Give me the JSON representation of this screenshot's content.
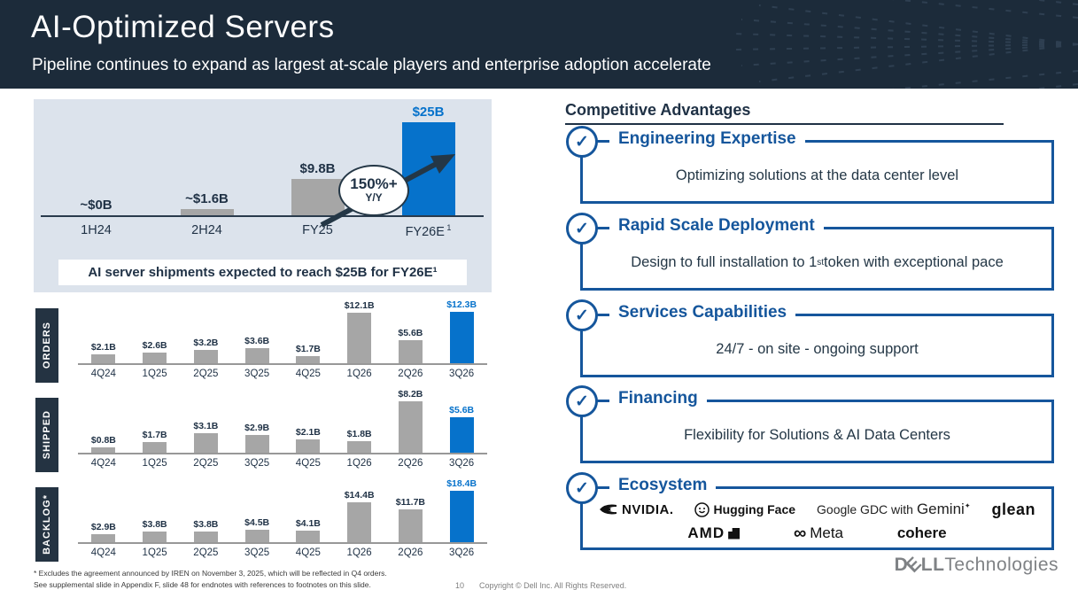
{
  "header": {
    "title": "AI-Optimized Servers",
    "subtitle": "Pipeline continues to expand as largest at-scale players and enterprise adoption accelerate"
  },
  "shipments": {
    "caption": "AI server shipments expected to reach $25B for FY26E¹",
    "callout": {
      "line1": "150%+",
      "line2": "Y/Y"
    }
  },
  "chart_data": [
    {
      "type": "bar",
      "title": "AI server shipments expected to reach $25B for FY26E¹",
      "categories": [
        "1H24",
        "2H24",
        "FY25",
        "FY26E"
      ],
      "category_sups": [
        "",
        "",
        "",
        "1"
      ],
      "values": [
        0,
        1.6,
        9.8,
        25
      ],
      "value_labels": [
        "~$0B",
        "~$1.6B",
        "$9.8B",
        "$25B"
      ],
      "unit": "$B",
      "highlight_index": 3,
      "annotation": "150%+ Y/Y",
      "bar_color": "#a6a6a6",
      "highlight_color": "#0672cb",
      "ylim": [
        0,
        25
      ],
      "grid": false
    },
    {
      "type": "bar",
      "row_label": "ORDERS",
      "categories": [
        "4Q24",
        "1Q25",
        "2Q25",
        "3Q25",
        "4Q25",
        "1Q26",
        "2Q26",
        "3Q26"
      ],
      "values": [
        2.1,
        2.6,
        3.2,
        3.6,
        1.7,
        12.1,
        5.6,
        12.3
      ],
      "value_labels": [
        "$2.1B",
        "$2.6B",
        "$3.2B",
        "$3.6B",
        "$1.7B",
        "$12.1B",
        "$5.6B",
        "$12.3B"
      ],
      "unit": "$B",
      "highlight_index": 7,
      "bar_color": "#a6a6a6",
      "highlight_color": "#0672cb",
      "grid": false
    },
    {
      "type": "bar",
      "row_label": "SHIPPED",
      "categories": [
        "4Q24",
        "1Q25",
        "2Q25",
        "3Q25",
        "4Q25",
        "1Q26",
        "2Q26",
        "3Q26"
      ],
      "values": [
        0.8,
        1.7,
        3.1,
        2.9,
        2.1,
        1.8,
        8.2,
        5.6
      ],
      "value_labels": [
        "$0.8B",
        "$1.7B",
        "$3.1B",
        "$2.9B",
        "$2.1B",
        "$1.8B",
        "$8.2B",
        "$5.6B"
      ],
      "unit": "$B",
      "highlight_index": 7,
      "bar_color": "#a6a6a6",
      "highlight_color": "#0672cb",
      "grid": false
    },
    {
      "type": "bar",
      "row_label": "BACKLOG*",
      "categories": [
        "4Q24",
        "1Q25",
        "2Q25",
        "3Q25",
        "4Q25",
        "1Q26",
        "2Q26",
        "3Q26"
      ],
      "values": [
        2.9,
        3.8,
        3.8,
        4.5,
        4.1,
        14.4,
        11.7,
        18.4
      ],
      "value_labels": [
        "$2.9B",
        "$3.8B",
        "$3.8B",
        "$4.5B",
        "$4.1B",
        "$14.4B",
        "$11.7B",
        "$18.4B"
      ],
      "unit": "$B",
      "highlight_index": 7,
      "bar_color": "#a6a6a6",
      "highlight_color": "#0672cb",
      "grid": false
    }
  ],
  "advantages": {
    "heading": "Competitive Advantages",
    "check_glyph": "✓",
    "items": [
      {
        "title": "Engineering Expertise",
        "body": "Optimizing solutions at the data center level"
      },
      {
        "title": "Rapid Scale Deployment",
        "body_pre": "Design to full installation to 1",
        "body_sup": "st",
        "body_post": " token with exceptional pace"
      },
      {
        "title": "Services Capabilities",
        "body": "24/7 - on site - ongoing support"
      },
      {
        "title": "Financing",
        "body": "Flexibility for Solutions & AI Data Centers"
      },
      {
        "title": "Ecosystem"
      }
    ],
    "logos": {
      "nvidia": "NVIDIA.",
      "hugging_face": "Hugging Face",
      "google_prefix": "Google GDC with",
      "gemini": "Gemini",
      "gemini_star": "✦",
      "glean": "glean",
      "amd": "AMD",
      "meta": "Meta",
      "meta_infinity": "∞",
      "cohere": "cohere"
    }
  },
  "footer": {
    "footnote1": "* Excludes the agreement announced by IREN on November 3, 2025, which will be reflected in Q4 orders.",
    "footnote2": "See supplemental slide in Appendix F, slide 48 for endnotes with references to footnotes on this slide.",
    "page_number": "10",
    "copyright": "Copyright © Dell Inc. All Rights Reserved.",
    "brand_d": "D",
    "brand_e": "E",
    "brand_ll": "LL",
    "brand_regular": "Technologies"
  },
  "colors": {
    "header_navy": "#1c2b3a",
    "panel_bg": "#dce3ec",
    "bar_gray": "#a6a6a6",
    "bar_blue": "#0672cb",
    "advantage_blue": "#15569c",
    "text_navy": "#1f3145"
  }
}
